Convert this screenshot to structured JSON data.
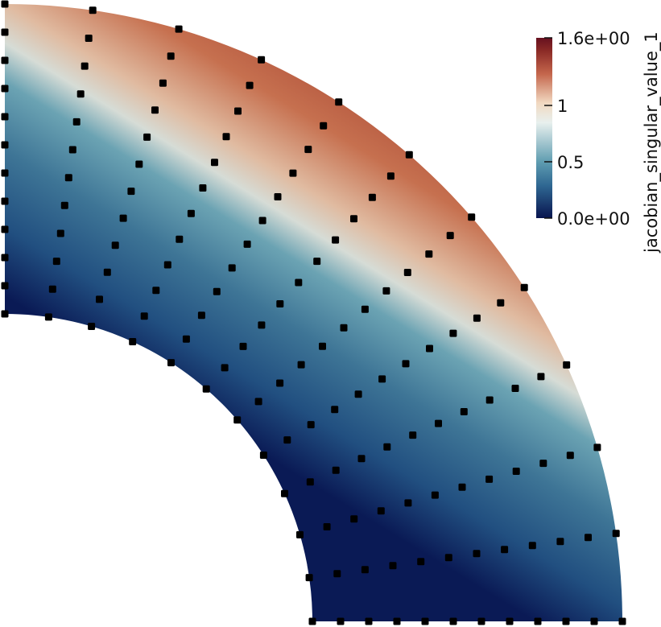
{
  "colorbar": {
    "title": "jacobian_singular_value_1",
    "tick_labels": [
      "1.6e+00",
      "1",
      "0.5",
      "0.0e+00"
    ],
    "tick_values": [
      1.6,
      1.0,
      0.5,
      0.0
    ],
    "range": [
      0.0,
      1.6
    ],
    "colormap": [
      "#08154f",
      "#2f6792",
      "#5e9cb0",
      "#dfeae8",
      "#f3dcc6",
      "#c4664c",
      "#8a2a26",
      "#66101f"
    ]
  },
  "mesh": {
    "shape": "quarter-annulus",
    "node_color": "#000000",
    "radial_nodes": 12,
    "angular_nodes": 12
  }
}
